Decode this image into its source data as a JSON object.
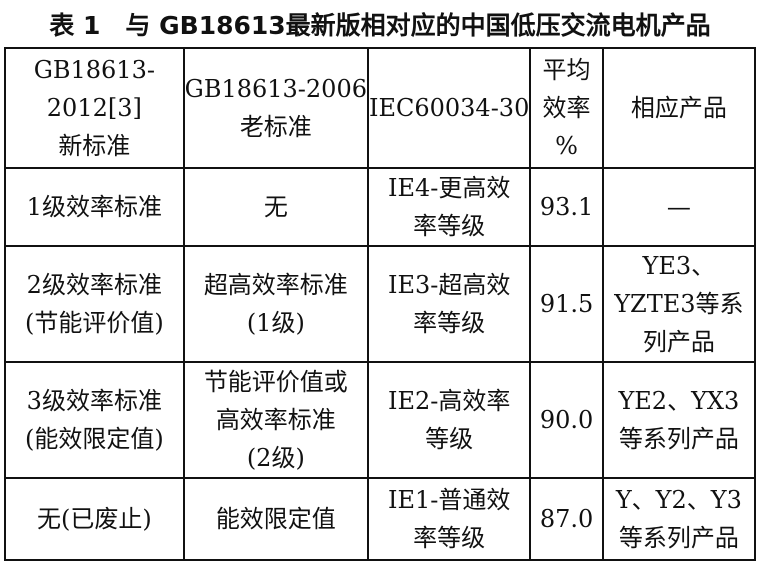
{
  "title": "表 1　与 GB18613最新版相对应的中国低压交流电机产品",
  "table": {
    "header": [
      [
        "GB18613-",
        "2012[3]",
        "新标准"
      ],
      [
        "GB18613-2006",
        "老标准"
      ],
      [
        "IEC60034-30"
      ],
      [
        "平均",
        "效率",
        "%"
      ],
      [
        "相应产品"
      ]
    ],
    "rows": [
      [
        [
          "1级效率标准"
        ],
        [
          "无"
        ],
        [
          "IE4-更高效",
          "率等级"
        ],
        [
          "93.1"
        ],
        [
          "—"
        ]
      ],
      [
        [
          "2级效率标准",
          "(节能评价值)"
        ],
        [
          "超高效率标准",
          "(1级)"
        ],
        [
          "IE3-超高效",
          "率等级"
        ],
        [
          "91.5"
        ],
        [
          "YE3、",
          "YZTE3等系",
          "列产品"
        ]
      ],
      [
        [
          "3级效率标准",
          "(能效限定值)"
        ],
        [
          "节能评价值或",
          "高效率标准",
          "(2级)"
        ],
        [
          "IE2-高效率",
          "等级"
        ],
        [
          "90.0"
        ],
        [
          "YE2、YX3",
          "等系列产品"
        ]
      ],
      [
        [
          "无(已废止)"
        ],
        [
          "能效限定值"
        ],
        [
          "IE1-普通效",
          "率等级"
        ],
        [
          "87.0"
        ],
        [
          "Y、Y2、Y3",
          "等系列产品"
        ]
      ]
    ]
  }
}
